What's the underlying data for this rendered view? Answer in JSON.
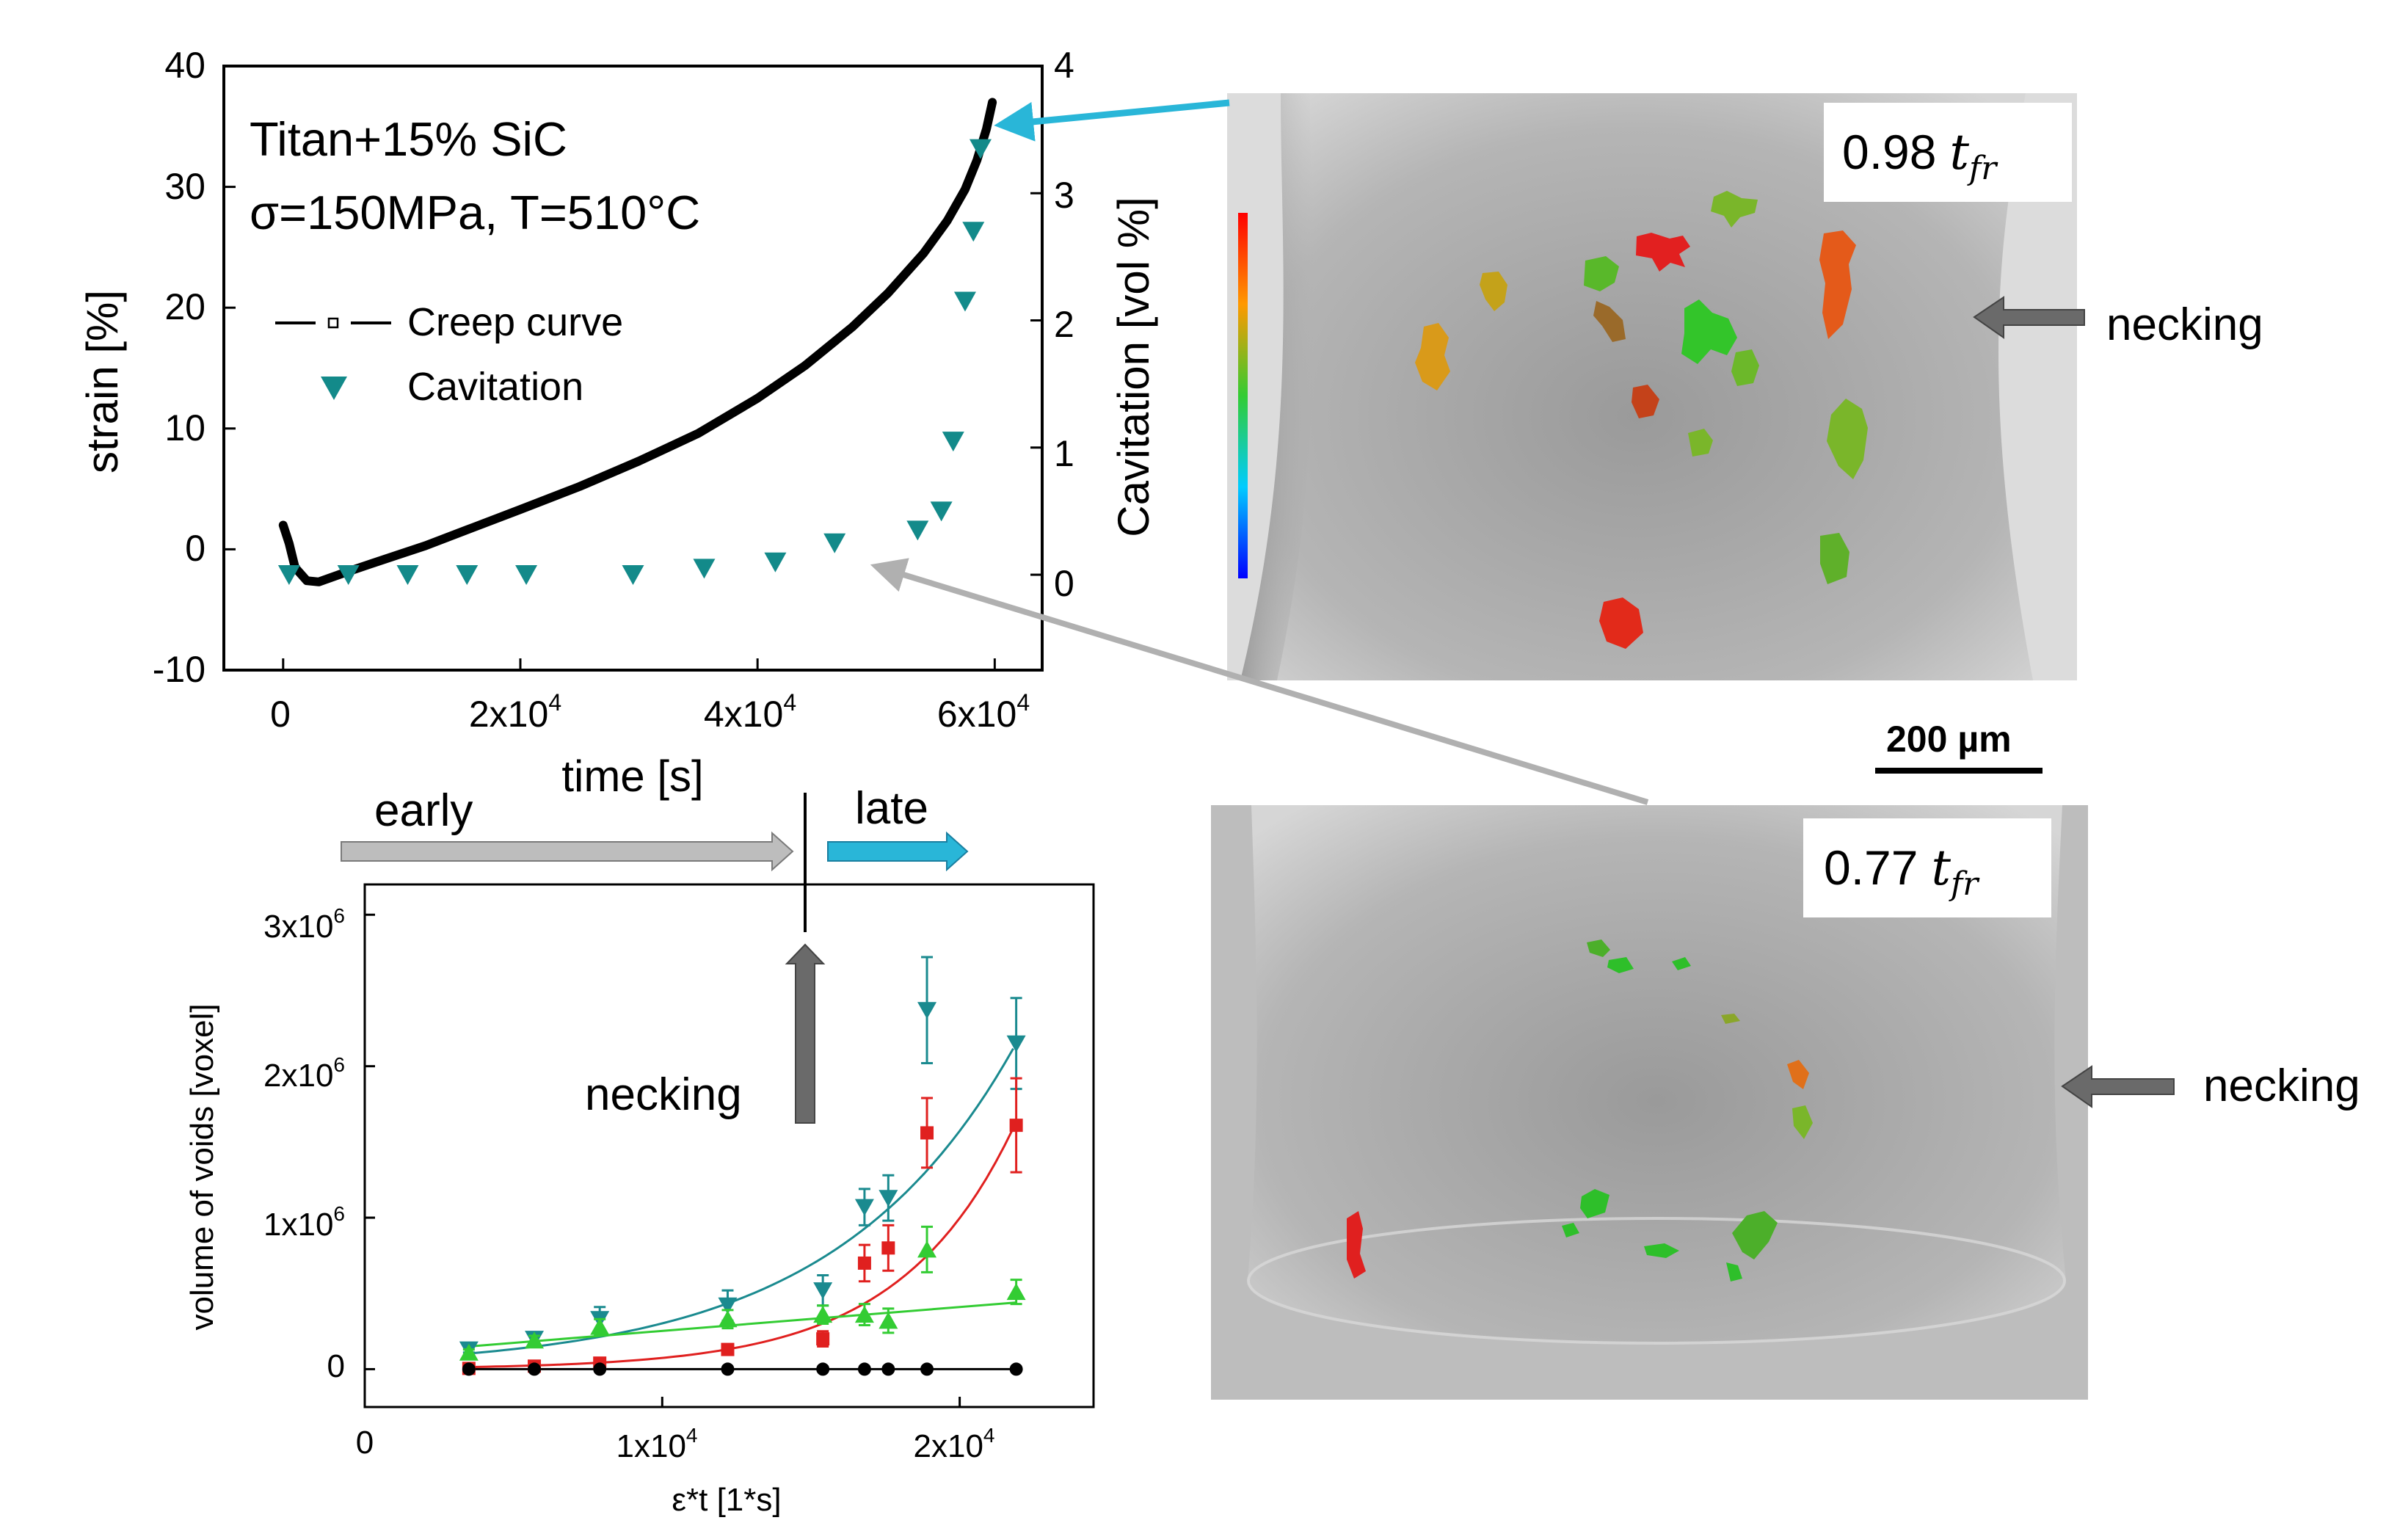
{
  "top_chart": {
    "annotation_line1": "Titan+15% SiC",
    "annotation_line2": "σ=150MPa, T=510°C",
    "legend": {
      "creep": "Creep curve",
      "cavitation": "Cavitation"
    },
    "ylabel_left": "strain [%]",
    "ylabel_right": "Cavitation [vol %]",
    "xlabel": "time [s]",
    "yticks_left": [
      "40",
      "30",
      "20",
      "10",
      "0",
      "-10"
    ],
    "yticks_right": [
      "4",
      "3",
      "2",
      "1",
      "0"
    ],
    "xticks": [
      {
        "base": "0",
        "exp": ""
      },
      {
        "base": "2x10",
        "exp": "4"
      },
      {
        "base": "4x10",
        "exp": "4"
      },
      {
        "base": "6x10",
        "exp": "4"
      }
    ]
  },
  "bottom_chart": {
    "ylabel": "volume of voids [voxel]",
    "xlabel": "ε*t [1*s]",
    "yticks": [
      {
        "base": "3x10",
        "exp": "6"
      },
      {
        "base": "2x10",
        "exp": "6"
      },
      {
        "base": "1x10",
        "exp": "6"
      },
      {
        "base": "0",
        "exp": ""
      }
    ],
    "xticks": [
      {
        "base": "0",
        "exp": ""
      },
      {
        "base": "1x10",
        "exp": "4"
      },
      {
        "base": "2x10",
        "exp": "4"
      }
    ]
  },
  "arrows": {
    "early": "early",
    "late": "late",
    "necking_chart": "necking"
  },
  "images": {
    "top_label_base": "0.98",
    "top_label_sub": "t",
    "top_label_subsub": "fr",
    "bottom_label_base": "0.77",
    "bottom_label_sub": "t",
    "bottom_label_subsub": "fr",
    "scale_bar": "200 µm",
    "necking_top": "necking",
    "necking_bottom": "necking"
  },
  "colors": {
    "creep": "#000000",
    "cavitation": "#138a8a",
    "teal": "#1a8a8f",
    "red": "#e0201f",
    "green": "#33cc33",
    "black_series": "#000000",
    "cyan_arrow": "#29b6d8",
    "gray_arrow": "#b0b0b0"
  },
  "chart_data": [
    {
      "type": "line",
      "title": "Titan+15% SiC, σ=150MPa, T=510°C",
      "xlabel": "time [s]",
      "ylabel": "strain [%]",
      "y2label": "Cavitation [vol %]",
      "xlim": [
        -5000,
        64000
      ],
      "ylim": [
        -10,
        40
      ],
      "y2lim": [
        -0.75,
        4
      ],
      "series": [
        {
          "name": "Creep curve",
          "axis": "left",
          "x": [
            0,
            500,
            1000,
            2000,
            3000,
            5000,
            8000,
            12000,
            16000,
            20000,
            25000,
            30000,
            35000,
            40000,
            44000,
            48000,
            51000,
            54000,
            56000,
            57500,
            58500,
            59300,
            59800
          ],
          "y": [
            2,
            0.5,
            -1.5,
            -2.6,
            -2.7,
            -2,
            -1,
            0.3,
            1.8,
            3.3,
            5.2,
            7.3,
            9.6,
            12.5,
            15.2,
            18.4,
            21.2,
            24.5,
            27.2,
            29.8,
            32.2,
            34.8,
            37
          ]
        },
        {
          "name": "Cavitation",
          "axis": "right",
          "x": [
            500,
            5500,
            10500,
            15500,
            20500,
            29500,
            35500,
            41500,
            46500,
            53500,
            55500,
            56500,
            57500,
            58200,
            58800
          ],
          "y": [
            0,
            0,
            0,
            0,
            0,
            0,
            0.05,
            0.1,
            0.25,
            0.35,
            0.5,
            1.05,
            2.15,
            2.7,
            3.35
          ]
        }
      ]
    },
    {
      "type": "scatter",
      "xlabel": "ε*t [1*s]",
      "ylabel": "volume of voids [voxel]",
      "xlim": [
        0,
        24500
      ],
      "ylim": [
        -250000,
        3200000
      ],
      "series": [
        {
          "name": "teal",
          "color": "#1a8a8f",
          "marker": "triangle-down",
          "x": [
            3500,
            5700,
            7900,
            12200,
            15400,
            16800,
            17600,
            18900,
            21900
          ],
          "y": [
            130000,
            200000,
            330000,
            420000,
            520000,
            1070000,
            1130000,
            2370000,
            2150000
          ],
          "err": [
            20000,
            30000,
            80000,
            100000,
            100000,
            120000,
            150000,
            350000,
            300000
          ],
          "fit": {
            "a": 58000,
            "b": 0.000165
          }
        },
        {
          "name": "red",
          "color": "#e0201f",
          "marker": "square",
          "x": [
            3500,
            5700,
            7900,
            12200,
            15400,
            16800,
            17600,
            18900,
            21900
          ],
          "y": [
            5000,
            20000,
            40000,
            130000,
            200000,
            700000,
            800000,
            1560000,
            1610000
          ],
          "err": [
            0,
            0,
            0,
            0,
            50000,
            120000,
            150000,
            230000,
            310000
          ],
          "fit": {
            "a": 5500,
            "b": 0.00026
          }
        },
        {
          "name": "green",
          "color": "#33cc33",
          "marker": "triangle-up",
          "x": [
            3500,
            5700,
            7900,
            12200,
            15400,
            16800,
            17600,
            18900,
            21900
          ],
          "y": [
            110000,
            190000,
            280000,
            330000,
            360000,
            360000,
            320000,
            790000,
            510000
          ],
          "err": [
            20000,
            30000,
            50000,
            60000,
            60000,
            70000,
            80000,
            150000,
            80000
          ],
          "fit": {
            "type": "linear",
            "p0": [
              3500,
              150000
            ],
            "p1": [
              21900,
              440000
            ]
          }
        },
        {
          "name": "black",
          "color": "#000000",
          "marker": "circle",
          "x": [
            3500,
            5700,
            7900,
            12200,
            15400,
            16800,
            17600,
            18900,
            21900
          ],
          "y": [
            0,
            0,
            0,
            0,
            0,
            0,
            0,
            0,
            0
          ],
          "err": [
            0,
            0,
            0,
            0,
            0,
            0,
            0,
            0,
            0
          ]
        }
      ]
    }
  ]
}
